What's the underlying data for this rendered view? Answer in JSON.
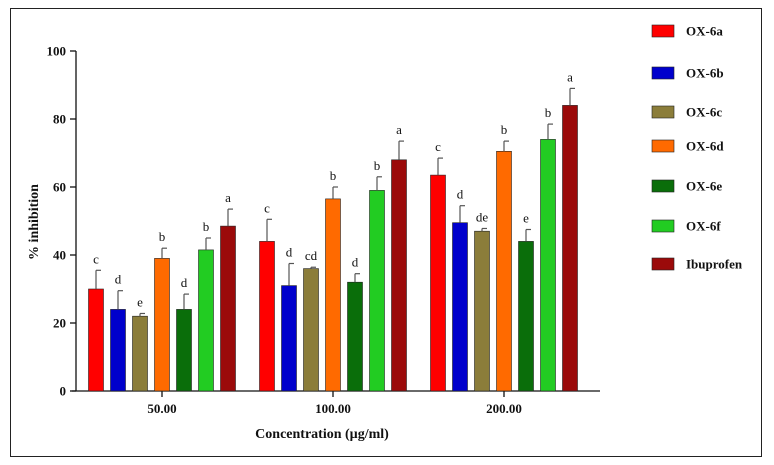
{
  "chart_data": {
    "type": "bar",
    "xlabel": "Concentration (µg/ml)",
    "ylabel": "% inhibition",
    "ylim": [
      0,
      100
    ],
    "yticks": [
      0,
      20,
      40,
      60,
      80,
      100
    ],
    "categories": [
      "50.00",
      "100.00",
      "200.00"
    ],
    "legend_position": "right",
    "series": [
      {
        "name": "OX-6a",
        "color": "#ff0000",
        "values": [
          30,
          44,
          63.5
        ],
        "errors": [
          5.5,
          6.5,
          5
        ],
        "letters": [
          "c",
          "c",
          "c"
        ]
      },
      {
        "name": "OX-6b",
        "color": "#0000cc",
        "values": [
          24,
          31,
          49.5
        ],
        "errors": [
          5.5,
          6.5,
          5
        ],
        "letters": [
          "d",
          "d",
          "d"
        ]
      },
      {
        "name": "OX-6c",
        "color": "#8b7d3a",
        "values": [
          22,
          36,
          47
        ],
        "errors": [
          0.8,
          0.4,
          0.8
        ],
        "letters": [
          "e",
          "cd",
          "de"
        ]
      },
      {
        "name": "OX-6d",
        "color": "#ff6a00",
        "values": [
          39,
          56.5,
          70.5
        ],
        "errors": [
          3,
          3.5,
          3
        ],
        "letters": [
          "b",
          "b",
          "b"
        ]
      },
      {
        "name": "OX-6e",
        "color": "#0a6e0a",
        "values": [
          24,
          32,
          44
        ],
        "errors": [
          4.5,
          2.5,
          3.5
        ],
        "letters": [
          "d",
          "d",
          "e"
        ]
      },
      {
        "name": "OX-6f",
        "color": "#22cc22",
        "values": [
          41.5,
          59,
          74
        ],
        "errors": [
          3.5,
          4,
          4.5
        ],
        "letters": [
          "b",
          "b",
          "b"
        ]
      },
      {
        "name": "Ibuprofen",
        "color": "#9b0a0a",
        "values": [
          48.5,
          68,
          84
        ],
        "errors": [
          5,
          5.5,
          5
        ],
        "letters": [
          "a",
          "a",
          "a"
        ]
      }
    ]
  }
}
